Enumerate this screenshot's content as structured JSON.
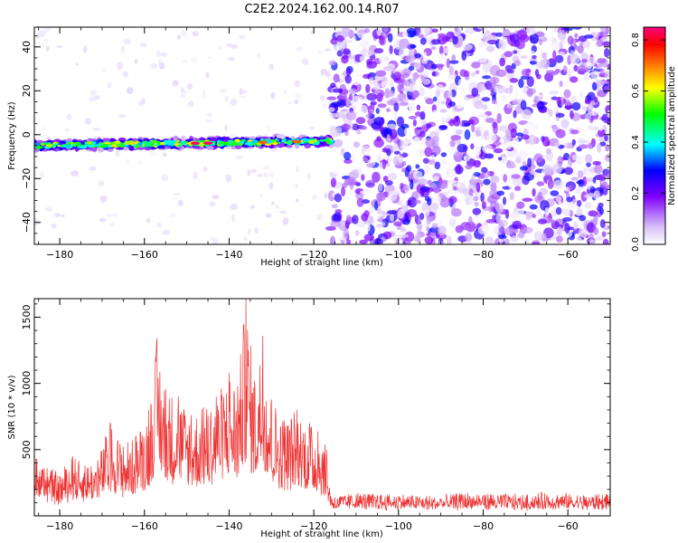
{
  "title": "C2E2.2024.162.00.14.R07",
  "colors": {
    "snr_line": "#ee3333",
    "colormap": [
      "#ffffff",
      "#d8c0f8",
      "#8000ff",
      "#0000ff",
      "#00ffff",
      "#00ff00",
      "#ffff00",
      "#ff8000",
      "#ff0000",
      "#ff007f"
    ]
  },
  "chart_data": [
    {
      "type": "heatmap",
      "xlabel": "Height of straight line (km)",
      "ylabel": "Frequency (Hz)",
      "xlim": [
        -186,
        -50
      ],
      "ylim": [
        -50,
        49
      ],
      "x_ticks": [
        -180,
        -160,
        -140,
        -120,
        -100,
        -80,
        -60
      ],
      "y_ticks": [
        -40,
        -20,
        0,
        20,
        40
      ],
      "colorbar": {
        "label": "Normalized spectral amplitude",
        "range": [
          0,
          0.85
        ],
        "ticks": [
          0.0,
          0.2,
          0.4,
          0.6,
          0.8
        ]
      },
      "features": [
        {
          "description_of_band": "narrow band",
          "x_range": [
            -186,
            -116
          ],
          "frequency_center_start": -5,
          "frequency_center_end": -3,
          "frequency_width": 6,
          "peak_amplitude": 0.85
        },
        {
          "x_range": [
            -116,
            -50
          ],
          "frequency_range": [
            -50,
            49
          ],
          "amplitude_range": [
            0.0,
            0.3
          ]
        }
      ]
    },
    {
      "type": "line",
      "xlabel": "Height of straight line (km)",
      "ylabel": "SNR (10 * v/v)",
      "xlim": [
        -186,
        -50
      ],
      "ylim": [
        0,
        1640
      ],
      "x_ticks": [
        -180,
        -160,
        -140,
        -120,
        -100,
        -80,
        -60
      ],
      "y_ticks": [
        500,
        1000,
        1500
      ],
      "series": [
        {
          "x": [
            -186,
            -183,
            -180,
            -177,
            -174,
            -171,
            -168,
            -165,
            -162,
            -159,
            -157,
            -155,
            -152,
            -149,
            -146,
            -143,
            -140,
            -138,
            -136,
            -134,
            -132,
            -130,
            -127,
            -124,
            -121,
            -119,
            -117,
            -116,
            -114,
            -110,
            -105,
            -100,
            -95,
            -90,
            -85,
            -80,
            -75,
            -70,
            -65,
            -60,
            -55,
            -50
          ],
          "y": [
            480,
            360,
            300,
            450,
            380,
            420,
            700,
            520,
            600,
            800,
            1340,
            960,
            900,
            760,
            820,
            900,
            1080,
            980,
            1640,
            1020,
            1360,
            880,
            720,
            800,
            700,
            640,
            500,
            150,
            140,
            160,
            150,
            150,
            140,
            130,
            160,
            150,
            150,
            140,
            160,
            150,
            140,
            160
          ]
        }
      ]
    }
  ]
}
